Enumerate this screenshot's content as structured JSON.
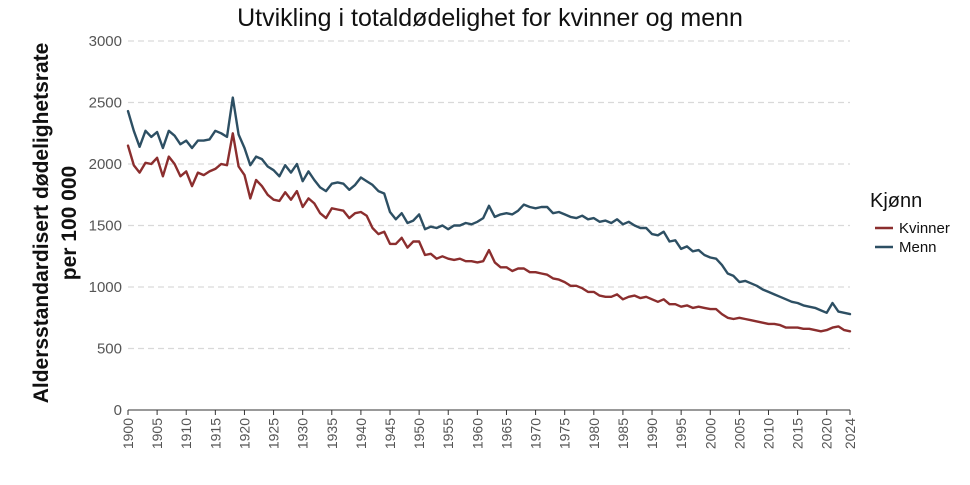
{
  "chart_data": {
    "type": "line",
    "title": "Utvikling i totaldødelighet for kvinner og menn",
    "xlabel": "",
    "ylabel_lines": [
      "Aldersstandardisert dødelighetsrate",
      "per 100 000"
    ],
    "xlim": [
      1900,
      2024
    ],
    "ylim": [
      0,
      3000
    ],
    "yticks": [
      0,
      500,
      1000,
      1500,
      2000,
      2500,
      3000
    ],
    "xticks": [
      1900,
      1905,
      1910,
      1915,
      1920,
      1925,
      1930,
      1935,
      1940,
      1945,
      1950,
      1955,
      1960,
      1965,
      1970,
      1975,
      1980,
      1985,
      1990,
      1995,
      2000,
      2005,
      2010,
      2015,
      2020,
      2024
    ],
    "grid": "horizontal-dashed",
    "legend": {
      "title": "Kjønn",
      "position": "right"
    },
    "series": [
      {
        "name": "Kvinner",
        "color": "#8b2e2e",
        "points": [
          [
            1900,
            2150
          ],
          [
            1901,
            1990
          ],
          [
            1902,
            1930
          ],
          [
            1903,
            2010
          ],
          [
            1904,
            2000
          ],
          [
            1905,
            2050
          ],
          [
            1906,
            1900
          ],
          [
            1907,
            2060
          ],
          [
            1908,
            2000
          ],
          [
            1909,
            1900
          ],
          [
            1910,
            1940
          ],
          [
            1911,
            1820
          ],
          [
            1912,
            1930
          ],
          [
            1913,
            1910
          ],
          [
            1914,
            1940
          ],
          [
            1915,
            1960
          ],
          [
            1916,
            2000
          ],
          [
            1917,
            1990
          ],
          [
            1918,
            2250
          ],
          [
            1919,
            1980
          ],
          [
            1920,
            1910
          ],
          [
            1921,
            1720
          ],
          [
            1922,
            1870
          ],
          [
            1923,
            1820
          ],
          [
            1924,
            1750
          ],
          [
            1925,
            1710
          ],
          [
            1926,
            1700
          ],
          [
            1927,
            1770
          ],
          [
            1928,
            1710
          ],
          [
            1929,
            1780
          ],
          [
            1930,
            1650
          ],
          [
            1931,
            1720
          ],
          [
            1932,
            1680
          ],
          [
            1933,
            1600
          ],
          [
            1934,
            1560
          ],
          [
            1935,
            1640
          ],
          [
            1936,
            1630
          ],
          [
            1937,
            1620
          ],
          [
            1938,
            1560
          ],
          [
            1939,
            1600
          ],
          [
            1940,
            1610
          ],
          [
            1941,
            1580
          ],
          [
            1942,
            1480
          ],
          [
            1943,
            1430
          ],
          [
            1944,
            1450
          ],
          [
            1945,
            1350
          ],
          [
            1946,
            1350
          ],
          [
            1947,
            1400
          ],
          [
            1948,
            1320
          ],
          [
            1949,
            1370
          ],
          [
            1950,
            1370
          ],
          [
            1951,
            1260
          ],
          [
            1952,
            1270
          ],
          [
            1953,
            1230
          ],
          [
            1954,
            1250
          ],
          [
            1955,
            1230
          ],
          [
            1956,
            1220
          ],
          [
            1957,
            1230
          ],
          [
            1958,
            1210
          ],
          [
            1959,
            1210
          ],
          [
            1960,
            1200
          ],
          [
            1961,
            1210
          ],
          [
            1962,
            1300
          ],
          [
            1963,
            1200
          ],
          [
            1964,
            1160
          ],
          [
            1965,
            1160
          ],
          [
            1966,
            1130
          ],
          [
            1967,
            1150
          ],
          [
            1968,
            1150
          ],
          [
            1969,
            1120
          ],
          [
            1970,
            1120
          ],
          [
            1971,
            1110
          ],
          [
            1972,
            1100
          ],
          [
            1973,
            1070
          ],
          [
            1974,
            1060
          ],
          [
            1975,
            1040
          ],
          [
            1976,
            1010
          ],
          [
            1977,
            1010
          ],
          [
            1978,
            990
          ],
          [
            1979,
            960
          ],
          [
            1980,
            960
          ],
          [
            1981,
            930
          ],
          [
            1982,
            920
          ],
          [
            1983,
            920
          ],
          [
            1984,
            940
          ],
          [
            1985,
            900
          ],
          [
            1986,
            920
          ],
          [
            1987,
            930
          ],
          [
            1988,
            910
          ],
          [
            1989,
            920
          ],
          [
            1990,
            900
          ],
          [
            1991,
            880
          ],
          [
            1992,
            900
          ],
          [
            1993,
            860
          ],
          [
            1994,
            860
          ],
          [
            1995,
            840
          ],
          [
            1996,
            850
          ],
          [
            1997,
            830
          ],
          [
            1998,
            840
          ],
          [
            1999,
            830
          ],
          [
            2000,
            820
          ],
          [
            2001,
            820
          ],
          [
            2002,
            780
          ],
          [
            2003,
            750
          ],
          [
            2004,
            740
          ],
          [
            2005,
            750
          ],
          [
            2006,
            740
          ],
          [
            2007,
            730
          ],
          [
            2008,
            720
          ],
          [
            2009,
            710
          ],
          [
            2010,
            700
          ],
          [
            2011,
            700
          ],
          [
            2012,
            690
          ],
          [
            2013,
            670
          ],
          [
            2014,
            670
          ],
          [
            2015,
            670
          ],
          [
            2016,
            660
          ],
          [
            2017,
            660
          ],
          [
            2018,
            650
          ],
          [
            2019,
            640
          ],
          [
            2020,
            650
          ],
          [
            2021,
            670
          ],
          [
            2022,
            680
          ],
          [
            2023,
            650
          ],
          [
            2024,
            640
          ]
        ]
      },
      {
        "name": "Menn",
        "color": "#2d4f63",
        "points": [
          [
            1900,
            2430
          ],
          [
            1901,
            2270
          ],
          [
            1902,
            2140
          ],
          [
            1903,
            2270
          ],
          [
            1904,
            2220
          ],
          [
            1905,
            2260
          ],
          [
            1906,
            2130
          ],
          [
            1907,
            2270
          ],
          [
            1908,
            2230
          ],
          [
            1909,
            2160
          ],
          [
            1910,
            2190
          ],
          [
            1911,
            2130
          ],
          [
            1912,
            2190
          ],
          [
            1913,
            2190
          ],
          [
            1914,
            2200
          ],
          [
            1915,
            2270
          ],
          [
            1916,
            2250
          ],
          [
            1917,
            2220
          ],
          [
            1918,
            2540
          ],
          [
            1919,
            2240
          ],
          [
            1920,
            2130
          ],
          [
            1921,
            1990
          ],
          [
            1922,
            2060
          ],
          [
            1923,
            2040
          ],
          [
            1924,
            1980
          ],
          [
            1925,
            1950
          ],
          [
            1926,
            1900
          ],
          [
            1927,
            1990
          ],
          [
            1928,
            1930
          ],
          [
            1929,
            2000
          ],
          [
            1930,
            1860
          ],
          [
            1931,
            1940
          ],
          [
            1932,
            1870
          ],
          [
            1933,
            1810
          ],
          [
            1934,
            1780
          ],
          [
            1935,
            1840
          ],
          [
            1936,
            1850
          ],
          [
            1937,
            1840
          ],
          [
            1938,
            1790
          ],
          [
            1939,
            1830
          ],
          [
            1940,
            1890
          ],
          [
            1941,
            1860
          ],
          [
            1942,
            1830
          ],
          [
            1943,
            1780
          ],
          [
            1944,
            1760
          ],
          [
            1945,
            1610
          ],
          [
            1946,
            1550
          ],
          [
            1947,
            1600
          ],
          [
            1948,
            1520
          ],
          [
            1949,
            1540
          ],
          [
            1950,
            1590
          ],
          [
            1951,
            1470
          ],
          [
            1952,
            1490
          ],
          [
            1953,
            1480
          ],
          [
            1954,
            1500
          ],
          [
            1955,
            1470
          ],
          [
            1956,
            1500
          ],
          [
            1957,
            1500
          ],
          [
            1958,
            1520
          ],
          [
            1959,
            1510
          ],
          [
            1960,
            1530
          ],
          [
            1961,
            1560
          ],
          [
            1962,
            1660
          ],
          [
            1963,
            1570
          ],
          [
            1964,
            1590
          ],
          [
            1965,
            1600
          ],
          [
            1966,
            1590
          ],
          [
            1967,
            1620
          ],
          [
            1968,
            1670
          ],
          [
            1969,
            1650
          ],
          [
            1970,
            1640
          ],
          [
            1971,
            1650
          ],
          [
            1972,
            1650
          ],
          [
            1973,
            1600
          ],
          [
            1974,
            1610
          ],
          [
            1975,
            1590
          ],
          [
            1976,
            1570
          ],
          [
            1977,
            1560
          ],
          [
            1978,
            1580
          ],
          [
            1979,
            1550
          ],
          [
            1980,
            1560
          ],
          [
            1981,
            1530
          ],
          [
            1982,
            1540
          ],
          [
            1983,
            1520
          ],
          [
            1984,
            1550
          ],
          [
            1985,
            1510
          ],
          [
            1986,
            1530
          ],
          [
            1987,
            1500
          ],
          [
            1988,
            1480
          ],
          [
            1989,
            1480
          ],
          [
            1990,
            1430
          ],
          [
            1991,
            1420
          ],
          [
            1992,
            1450
          ],
          [
            1993,
            1370
          ],
          [
            1994,
            1380
          ],
          [
            1995,
            1310
          ],
          [
            1996,
            1330
          ],
          [
            1997,
            1290
          ],
          [
            1998,
            1300
          ],
          [
            1999,
            1260
          ],
          [
            2000,
            1240
          ],
          [
            2001,
            1230
          ],
          [
            2002,
            1180
          ],
          [
            2003,
            1110
          ],
          [
            2004,
            1090
          ],
          [
            2005,
            1040
          ],
          [
            2006,
            1050
          ],
          [
            2007,
            1030
          ],
          [
            2008,
            1010
          ],
          [
            2009,
            980
          ],
          [
            2010,
            960
          ],
          [
            2011,
            940
          ],
          [
            2012,
            920
          ],
          [
            2013,
            900
          ],
          [
            2014,
            880
          ],
          [
            2015,
            870
          ],
          [
            2016,
            850
          ],
          [
            2017,
            840
          ],
          [
            2018,
            830
          ],
          [
            2019,
            810
          ],
          [
            2020,
            790
          ],
          [
            2021,
            870
          ],
          [
            2022,
            800
          ],
          [
            2023,
            790
          ],
          [
            2024,
            780
          ]
        ]
      }
    ]
  }
}
